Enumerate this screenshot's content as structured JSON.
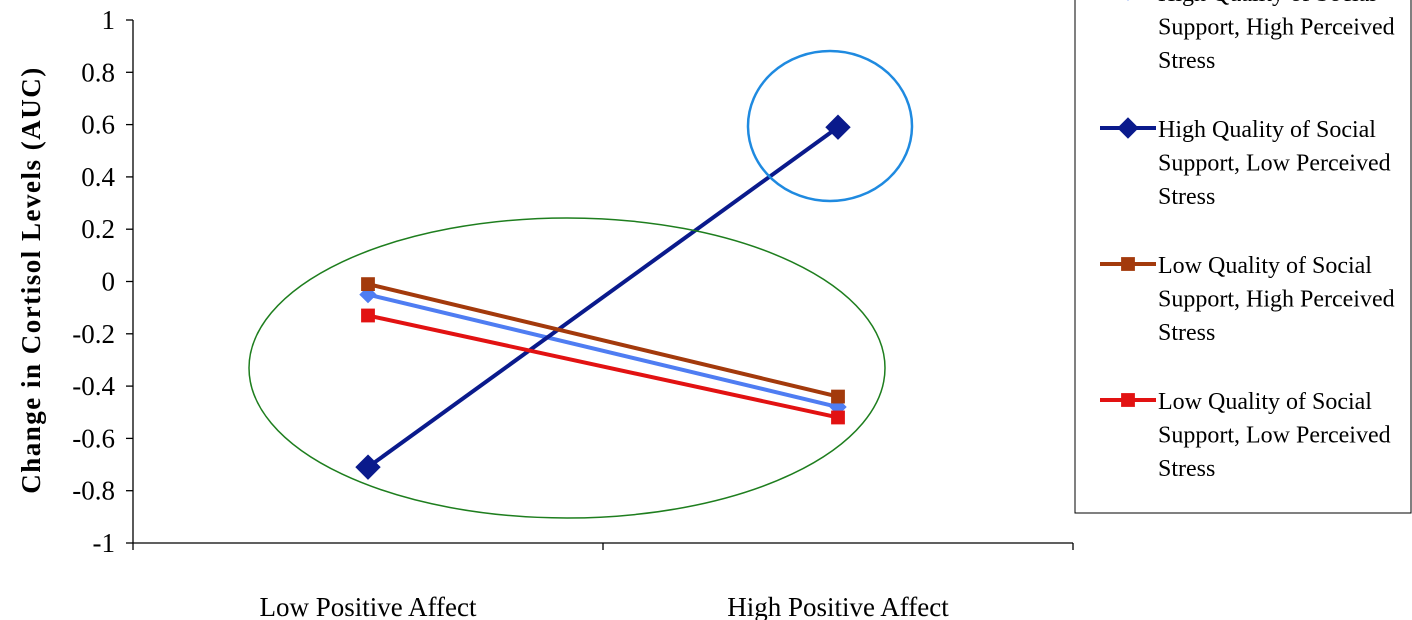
{
  "chart_data": {
    "type": "line",
    "title": "",
    "xlabel": "",
    "ylabel": "Change in Cortisol Levels (AUC)",
    "categories": [
      "Low Positive Affect",
      "High Positive Affect"
    ],
    "ylim": [
      -1,
      1
    ],
    "yticks": [
      1,
      0.8,
      0.6,
      0.4,
      0.2,
      0,
      -0.2,
      -0.4,
      -0.6,
      -0.8,
      -1
    ],
    "legend_position": "right",
    "series": [
      {
        "name_lines": [
          "High Quality of Social",
          "Support, High Perceived",
          "Stress"
        ],
        "values": [
          -0.05,
          -0.48
        ],
        "color": "#4f7df2",
        "marker": "diamond"
      },
      {
        "name_lines": [
          "High Quality of Social",
          "Support, Low Perceived",
          "Stress"
        ],
        "values": [
          -0.71,
          0.59
        ],
        "color": "#0a1a8c",
        "marker": "diamond"
      },
      {
        "name_lines": [
          "Low Quality of Social",
          "Support, High Perceived",
          "Stress"
        ],
        "values": [
          -0.01,
          -0.44
        ],
        "color": "#a33a0c",
        "marker": "square"
      },
      {
        "name_lines": [
          "Low Quality of Social",
          "Support, Low Perceived",
          "Stress"
        ],
        "values": [
          -0.13,
          -0.52
        ],
        "color": "#e21212",
        "marker": "square"
      }
    ],
    "annotations": [
      {
        "shape": "ellipse",
        "color": "#1f8ae0",
        "label": ""
      },
      {
        "shape": "ellipse",
        "color": "#1e7e1e",
        "label": ""
      }
    ]
  }
}
